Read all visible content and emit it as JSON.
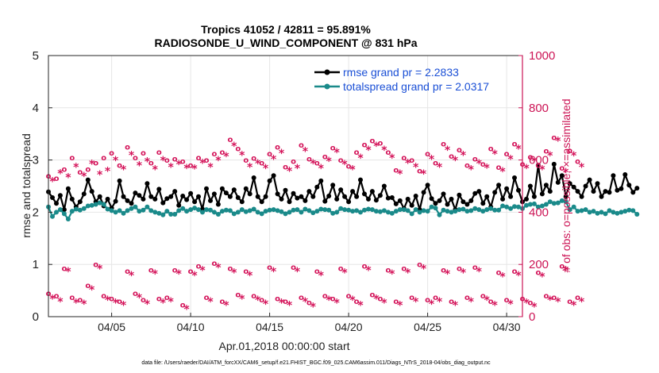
{
  "chart_data": {
    "type": "line",
    "title_line1": "Tropics 41052 / 42811 = 95.891%",
    "title_line2": "RADIOSONDE_U_WIND_COMPONENT @ 831 hPa",
    "xlabel": "Apr.01,2018 00:00:00 start",
    "ylabel_left": "rmse and totalspread",
    "ylabel_right": "# of obs: o=possible; ×=assimilated",
    "footer": "data file: /Users/raeder/DAI/ATM_forcXX/CAM6_setup/f.e21.FHIST_BGC.f09_025.CAM6assim.011/Diags_NTrS_2018-04/obs_diag_output.nc",
    "xlim": [
      1,
      31
    ],
    "ylim_left": [
      0,
      5
    ],
    "ylim_right": [
      0,
      1000
    ],
    "x_ticks": [
      5,
      10,
      15,
      20,
      25,
      30
    ],
    "x_tick_labels": [
      "04/05",
      "04/10",
      "04/15",
      "04/20",
      "04/25",
      "04/30"
    ],
    "y_ticks_left": [
      "0",
      "1",
      "2",
      "3",
      "4",
      "5"
    ],
    "y_ticks_right": [
      "0",
      "200",
      "400",
      "600",
      "800",
      "1000"
    ],
    "legend": [
      {
        "label": "rmse grand pr = 2.2833",
        "color": "#000000"
      },
      {
        "label": "totalspread grand pr = 2.0317",
        "color": "#1a8a8a"
      }
    ],
    "series": [
      {
        "name": "rmse",
        "axis": "left",
        "color": "#000000",
        "x_start": 1.0,
        "x_step": 0.25,
        "values": [
          2.39,
          2.28,
          2.17,
          2.32,
          2.05,
          2.45,
          2.25,
          2.1,
          2.2,
          2.35,
          2.62,
          2.4,
          2.2,
          2.3,
          2.12,
          2.25,
          2.08,
          2.21,
          2.6,
          2.3,
          2.22,
          2.17,
          2.37,
          2.32,
          2.25,
          2.55,
          2.3,
          2.25,
          2.44,
          2.18,
          2.26,
          2.3,
          2.4,
          2.13,
          2.31,
          2.24,
          2.36,
          2.2,
          2.3,
          2.06,
          2.45,
          2.22,
          2.35,
          2.15,
          2.45,
          2.37,
          2.3,
          2.43,
          2.28,
          2.2,
          2.45,
          2.35,
          2.66,
          2.3,
          2.2,
          2.3,
          2.6,
          2.7,
          2.35,
          2.25,
          2.42,
          2.2,
          2.36,
          2.27,
          2.3,
          2.22,
          2.4,
          2.3,
          2.48,
          2.6,
          2.21,
          2.31,
          2.52,
          2.25,
          2.43,
          2.3,
          2.2,
          2.4,
          2.3,
          2.62,
          2.35,
          2.25,
          2.4,
          2.23,
          2.32,
          2.5,
          2.27,
          2.28,
          2.16,
          2.22,
          2.07,
          2.25,
          2.13,
          2.31,
          2.05,
          2.38,
          2.52,
          2.26,
          2.17,
          2.22,
          2.35,
          2.15,
          2.25,
          2.05,
          2.33,
          2.2,
          2.15,
          2.22,
          2.36,
          2.4,
          2.17,
          2.3,
          2.1,
          2.38,
          2.52,
          2.25,
          2.45,
          2.3,
          2.66,
          2.42,
          2.2,
          2.25,
          2.5,
          2.3,
          2.9,
          2.35,
          2.52,
          2.4,
          2.92,
          2.57,
          2.7,
          2.3,
          2.55,
          2.48,
          2.4,
          2.3,
          2.5,
          2.62,
          2.4,
          2.55,
          2.3,
          2.4,
          2.38,
          2.7,
          2.42,
          2.45,
          2.72,
          2.52,
          2.38,
          2.46
        ]
      },
      {
        "name": "totalspread",
        "axis": "left",
        "color": "#1a8a8a",
        "x_start": 1.0,
        "x_step": 0.25,
        "values": [
          2.1,
          1.92,
          2.0,
          2.05,
          1.97,
          1.87,
          2.02,
          2.06,
          2.04,
          2.07,
          2.12,
          2.13,
          2.15,
          2.18,
          2.15,
          2.06,
          2.03,
          2.0,
          2.03,
          1.98,
          2.03,
          2.07,
          2.1,
          2.02,
          2.04,
          2.1,
          2.03,
          2.0,
          1.98,
          1.95,
          2.02,
          1.96,
          1.96,
          2.03,
          2.07,
          2.02,
          2.05,
          2.08,
          2.05,
          2.0,
          2.05,
          2.04,
          2.0,
          1.96,
          2.02,
          2.04,
          2.03,
          1.97,
          2.0,
          2.05,
          2.01,
          2.03,
          2.06,
          2.0,
          1.97,
          2.02,
          2.04,
          2.05,
          2.03,
          2.01,
          1.97,
          2.0,
          2.04,
          2.05,
          2.0,
          2.06,
          2.03,
          1.99,
          2.02,
          2.06,
          2.05,
          2.04,
          1.98,
          2.0,
          2.07,
          2.05,
          2.04,
          2.02,
          2.03,
          2.0,
          2.04,
          2.06,
          2.05,
          2.02,
          2.01,
          2.03,
          2.0,
          1.98,
          2.02,
          2.05,
          2.05,
          2.03,
          1.97,
          2.05,
          2.0,
          2.03,
          2.02,
          2.1,
          2.08,
          1.95,
          2.04,
          2.02,
          2.0,
          2.02,
          2.05,
          2.06,
          2.02,
          2.03,
          2.07,
          2.05,
          2.02,
          2.05,
          2.07,
          2.04,
          2.04,
          2.12,
          2.1,
          2.07,
          2.11,
          2.1,
          2.07,
          2.13,
          2.15,
          2.16,
          2.1,
          2.12,
          2.15,
          2.2,
          2.17,
          2.18,
          2.22,
          2.2,
          2.05,
          2.1,
          2.02,
          2.03,
          2.05,
          2.0,
          2.02,
          1.98,
          2.0,
          1.97,
          2.03,
          2.0,
          1.98,
          2.0,
          2.02,
          2.04,
          2.03,
          1.96
        ]
      },
      {
        "name": "obs_possible_high",
        "axis": "right",
        "marker": "o",
        "color": "#d4145a",
        "x_start": 1.0,
        "x_step": 0.5,
        "values": [
          540,
          530,
          565,
          610,
          555,
          565,
          590,
          610,
          628,
          580,
          650,
          610,
          628,
          590,
          630,
          600,
          605,
          595,
          580,
          610,
          600,
          625,
          630,
          680,
          645,
          600,
          608,
          590,
          625,
          650,
          575,
          595,
          658,
          605,
          590,
          614,
          648,
          600,
          578,
          630,
          660,
          675,
          665,
          630,
          563,
          610,
          600,
          560,
          625,
          590,
          663,
          615,
          640,
          580,
          605,
          585,
          645,
          573,
          625,
          663,
          585,
          613,
          580,
          635,
          687,
          570,
          637,
          595
        ]
      },
      {
        "name": "obs_assimilated_high",
        "axis": "right",
        "marker": "x",
        "color": "#d4145a",
        "x_start": 1.25,
        "x_step": 0.5,
        "values": [
          520,
          550,
          535,
          575,
          540,
          587,
          545,
          560,
          600,
          565,
          620,
          580,
          595,
          565,
          600,
          575,
          585,
          570,
          568,
          590,
          575,
          600,
          615,
          655,
          620,
          575,
          588,
          570,
          605,
          628,
          560,
          570,
          635,
          588,
          570,
          598,
          630,
          585,
          565,
          610,
          640,
          655,
          640,
          610,
          548,
          590,
          575,
          548,
          605,
          575,
          640,
          600,
          620,
          565,
          588,
          572,
          625,
          558,
          605,
          645,
          570,
          598,
          565,
          618,
          675,
          555,
          618,
          575
        ]
      },
      {
        "name": "obs_possible_low",
        "axis": "right",
        "marker": "o",
        "color": "#d4145a",
        "x_start": 1.0,
        "x_step": 0.5,
        "values": [
          90,
          80,
          185,
          75,
          65,
          120,
          200,
          80,
          70,
          60,
          175,
          90,
          65,
          180,
          70,
          75,
          180,
          45,
          175,
          195,
          75,
          205,
          60,
          185,
          85,
          175,
          80,
          65,
          190,
          70,
          60,
          190,
          75,
          55,
          175,
          80,
          70,
          185,
          80,
          60,
          195,
          85,
          70,
          180,
          60,
          185,
          75,
          200,
          65,
          75,
          180,
          60,
          185,
          75,
          190,
          80,
          60,
          170,
          65,
          175,
          70,
          55,
          170,
          80,
          75,
          195,
          60,
          75
        ]
      },
      {
        "name": "obs_assimilated_low",
        "axis": "right",
        "marker": "x",
        "color": "#d4145a",
        "x_start": 1.25,
        "x_step": 0.5,
        "values": [
          70,
          60,
          175,
          55,
          50,
          105,
          185,
          65,
          55,
          45,
          160,
          75,
          50,
          165,
          55,
          60,
          165,
          30,
          160,
          180,
          60,
          190,
          45,
          170,
          70,
          160,
          65,
          50,
          175,
          55,
          45,
          175,
          60,
          40,
          160,
          65,
          55,
          170,
          65,
          45,
          180,
          70,
          55,
          165,
          45,
          170,
          60,
          185,
          50,
          60,
          165,
          45,
          170,
          60,
          175,
          65,
          45,
          155,
          50,
          160,
          55,
          40,
          155,
          65,
          60,
          180,
          45,
          60
        ]
      }
    ]
  }
}
